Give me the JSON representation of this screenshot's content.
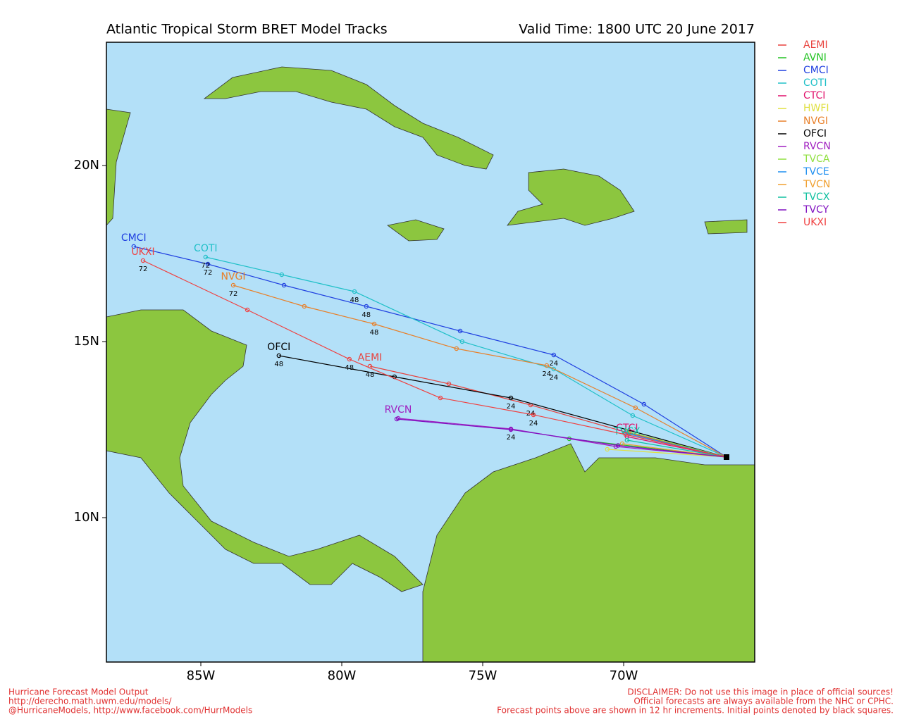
{
  "chart_data": {
    "type": "tracks",
    "title": "Atlantic Tropical Storm BRET Model Tracks",
    "subtitle": "Valid Time: 1800 UTC 20 June 2017",
    "xlim": [
      -88.35,
      -65.35
    ],
    "ylim": [
      5.9,
      23.5
    ],
    "xticks": [
      {
        "value": -85,
        "label": "85W"
      },
      {
        "value": -80,
        "label": "80W"
      },
      {
        "value": -75,
        "label": "75W"
      },
      {
        "value": -70,
        "label": "70W"
      }
    ],
    "yticks": [
      {
        "value": 10,
        "label": "10N"
      },
      {
        "value": 15,
        "label": "15N"
      },
      {
        "value": 20,
        "label": "20N"
      }
    ],
    "series": [
      {
        "name": "AEMI",
        "color": "#e8413c",
        "show_name": true,
        "x": [
          -66.35,
          -69.8,
          -73.3,
          -76.2,
          -79.0
        ],
        "values": [
          11.72,
          12.4,
          13.2,
          13.8,
          14.3
        ],
        "point_labels": [
          null,
          null,
          "24",
          null,
          "48"
        ]
      },
      {
        "name": "AVNI",
        "color": "#22c322",
        "show_name": false,
        "x": [
          -66.35,
          -71.93
        ],
        "values": [
          11.72,
          12.24
        ],
        "point_labels": [
          null,
          null
        ]
      },
      {
        "name": "CMCI",
        "color": "#2040e0",
        "show_name": true,
        "x": [
          -66.35,
          -69.28,
          -72.48,
          -75.8,
          -79.13,
          -82.05,
          -84.75,
          -87.38
        ],
        "values": [
          11.72,
          13.22,
          14.62,
          15.3,
          16.0,
          16.6,
          17.2,
          17.7
        ],
        "point_labels": [
          null,
          null,
          "24",
          null,
          "48",
          null,
          "72",
          null
        ]
      },
      {
        "name": "COTI",
        "color": "#20c0c8",
        "show_name": true,
        "x": [
          -66.35,
          -69.68,
          -72.48,
          -75.73,
          -79.55,
          -82.13,
          -84.83
        ],
        "values": [
          11.72,
          12.9,
          14.22,
          15.0,
          16.42,
          16.9,
          17.4
        ],
        "point_labels": [
          null,
          null,
          "24",
          null,
          "48",
          null,
          "72"
        ]
      },
      {
        "name": "CTCI",
        "color": "#e0106a",
        "show_name": true,
        "x": [
          -66.35,
          -69.88
        ],
        "values": [
          11.72,
          12.3
        ],
        "point_labels": [
          null,
          null
        ]
      },
      {
        "name": "HWFI",
        "color": "#e0e040",
        "show_name": false,
        "x": [
          -66.35,
          -70.58
        ],
        "values": [
          11.72,
          11.94
        ],
        "point_labels": [
          null,
          null
        ]
      },
      {
        "name": "NVGI",
        "color": "#e8802a",
        "show_name": true,
        "x": [
          -66.35,
          -69.58,
          -72.73,
          -75.93,
          -78.85,
          -81.33,
          -83.85
        ],
        "values": [
          11.72,
          13.12,
          14.32,
          14.8,
          15.5,
          16.0,
          16.6
        ],
        "point_labels": [
          null,
          null,
          "24",
          null,
          "48",
          null,
          "72"
        ]
      },
      {
        "name": "OFCI",
        "color": "#000000",
        "show_name": true,
        "x": [
          -66.35,
          -74.0,
          -78.13,
          -82.23
        ],
        "values": [
          11.72,
          13.4,
          14.0,
          14.6
        ],
        "point_labels": [
          null,
          "24",
          null,
          "48"
        ]
      },
      {
        "name": "RVCN",
        "color": "#a020c0",
        "show_name": true,
        "x": [
          -66.35,
          -70.28,
          -74.0,
          -78.0
        ],
        "values": [
          11.72,
          12.02,
          12.52,
          12.82
        ],
        "point_labels": [
          null,
          null,
          "24",
          null
        ]
      },
      {
        "name": "TVCA",
        "color": "#90e040",
        "show_name": false,
        "x": [
          -66.35,
          -69.9
        ],
        "values": [
          11.72,
          12.45
        ],
        "point_labels": [
          null,
          null
        ]
      },
      {
        "name": "TVCE",
        "color": "#2090f0",
        "show_name": false,
        "x": [
          -66.35,
          -69.95
        ],
        "values": [
          11.72,
          12.4
        ],
        "point_labels": [
          null,
          null
        ]
      },
      {
        "name": "TVCN",
        "color": "#f0a030",
        "show_name": false,
        "x": [
          -66.35,
          -70.05
        ],
        "values": [
          11.72,
          12.1
        ],
        "point_labels": [
          null,
          null
        ]
      },
      {
        "name": "TVCX",
        "color": "#10c0a0",
        "show_name": true,
        "x": [
          -66.35,
          -69.88
        ],
        "values": [
          11.72,
          12.2
        ],
        "point_labels": [
          null,
          null
        ]
      },
      {
        "name": "TVCY",
        "color": "#8010c0",
        "show_name": false,
        "x": [
          -66.35,
          -70.2,
          -74.0,
          -78.05
        ],
        "values": [
          11.72,
          12.05,
          12.5,
          12.8
        ],
        "point_labels": [
          null,
          null,
          null,
          null
        ]
      },
      {
        "name": "UKXI",
        "color": "#f04040",
        "show_name": true,
        "x": [
          -66.35,
          -69.93,
          -73.2,
          -76.5,
          -79.73,
          -83.35,
          -87.05
        ],
        "values": [
          11.72,
          12.36,
          12.92,
          13.4,
          14.5,
          15.9,
          17.3
        ],
        "point_labels": [
          null,
          null,
          "24",
          null,
          "48",
          null,
          "72"
        ]
      }
    ],
    "footer_left": [
      "Hurricane Forecast Model Output",
      "http://derecho.math.uwm.edu/models/",
      "@HurricaneModels, http://www.facebook.com/HurrModels"
    ],
    "footer_right": [
      "DISCLAIMER: Do not use this image in place of official sources!",
      "Official forecasts are always available from the NHC or CPHC.",
      "Forecast points above are shown in 12 hr increments. Initial points denoted by black squares."
    ]
  }
}
